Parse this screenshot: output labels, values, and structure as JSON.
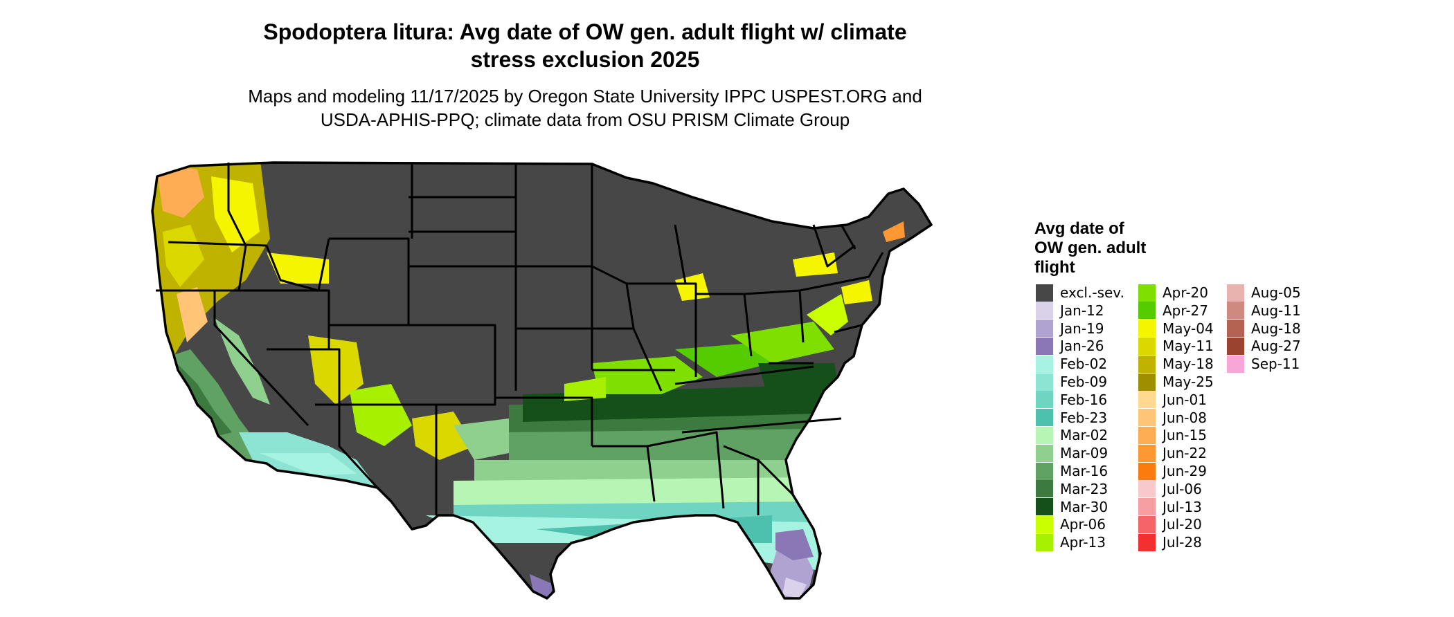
{
  "title_line1": "Spodoptera litura: Avg date of OW gen. adult flight w/ climate",
  "title_line2": "stress exclusion 2025",
  "subtitle_line1": "Maps and modeling 11/17/2025 by Oregon State University IPPC USPEST.ORG and",
  "subtitle_line2": "USDA-APHIS-PPQ; climate data from OSU PRISM Climate Group",
  "legend": {
    "title_line1": "Avg date of",
    "title_line2": "OW gen. adult",
    "title_line3": "flight",
    "items": [
      {
        "label": "excl.-sev.",
        "color": "#474747"
      },
      {
        "label": "Jan-12",
        "color": "#d9d2ea"
      },
      {
        "label": "Jan-19",
        "color": "#b0a2d1"
      },
      {
        "label": "Jan-26",
        "color": "#8a78b6"
      },
      {
        "label": "Feb-02",
        "color": "#a6f3e2"
      },
      {
        "label": "Feb-09",
        "color": "#8ee4d2"
      },
      {
        "label": "Feb-16",
        "color": "#6fd5c3"
      },
      {
        "label": "Feb-23",
        "color": "#4dc0ae"
      },
      {
        "label": "Mar-02",
        "color": "#b6f5b4"
      },
      {
        "label": "Mar-09",
        "color": "#8fd08e"
      },
      {
        "label": "Mar-16",
        "color": "#60a263"
      },
      {
        "label": "Mar-23",
        "color": "#3c7a40"
      },
      {
        "label": "Mar-30",
        "color": "#15501b"
      },
      {
        "label": "Apr-06",
        "color": "#c9ff00"
      },
      {
        "label": "Apr-13",
        "color": "#a7f000"
      },
      {
        "label": "Apr-20",
        "color": "#7fe000"
      },
      {
        "label": "Apr-27",
        "color": "#55cc00"
      },
      {
        "label": "May-04",
        "color": "#f5f500"
      },
      {
        "label": "May-11",
        "color": "#dbd800"
      },
      {
        "label": "May-18",
        "color": "#bfb300"
      },
      {
        "label": "May-25",
        "color": "#9e8f00"
      },
      {
        "label": "Jun-01",
        "color": "#ffd98f"
      },
      {
        "label": "Jun-08",
        "color": "#ffc476"
      },
      {
        "label": "Jun-15",
        "color": "#ffad55"
      },
      {
        "label": "Jun-22",
        "color": "#fd9832"
      },
      {
        "label": "Jun-29",
        "color": "#fb7b0f"
      },
      {
        "label": "Jul-06",
        "color": "#f7c9cc"
      },
      {
        "label": "Jul-13",
        "color": "#f79ea0"
      },
      {
        "label": "Jul-20",
        "color": "#f56467"
      },
      {
        "label": "Jul-28",
        "color": "#f42f2f"
      },
      {
        "label": "Aug-05",
        "color": "#e8b3ae"
      },
      {
        "label": "Aug-11",
        "color": "#cf8a80"
      },
      {
        "label": "Aug-18",
        "color": "#b46353"
      },
      {
        "label": "Aug-27",
        "color": "#9a432e"
      },
      {
        "label": "Sep-11",
        "color": "#f8a6d8"
      }
    ]
  }
}
